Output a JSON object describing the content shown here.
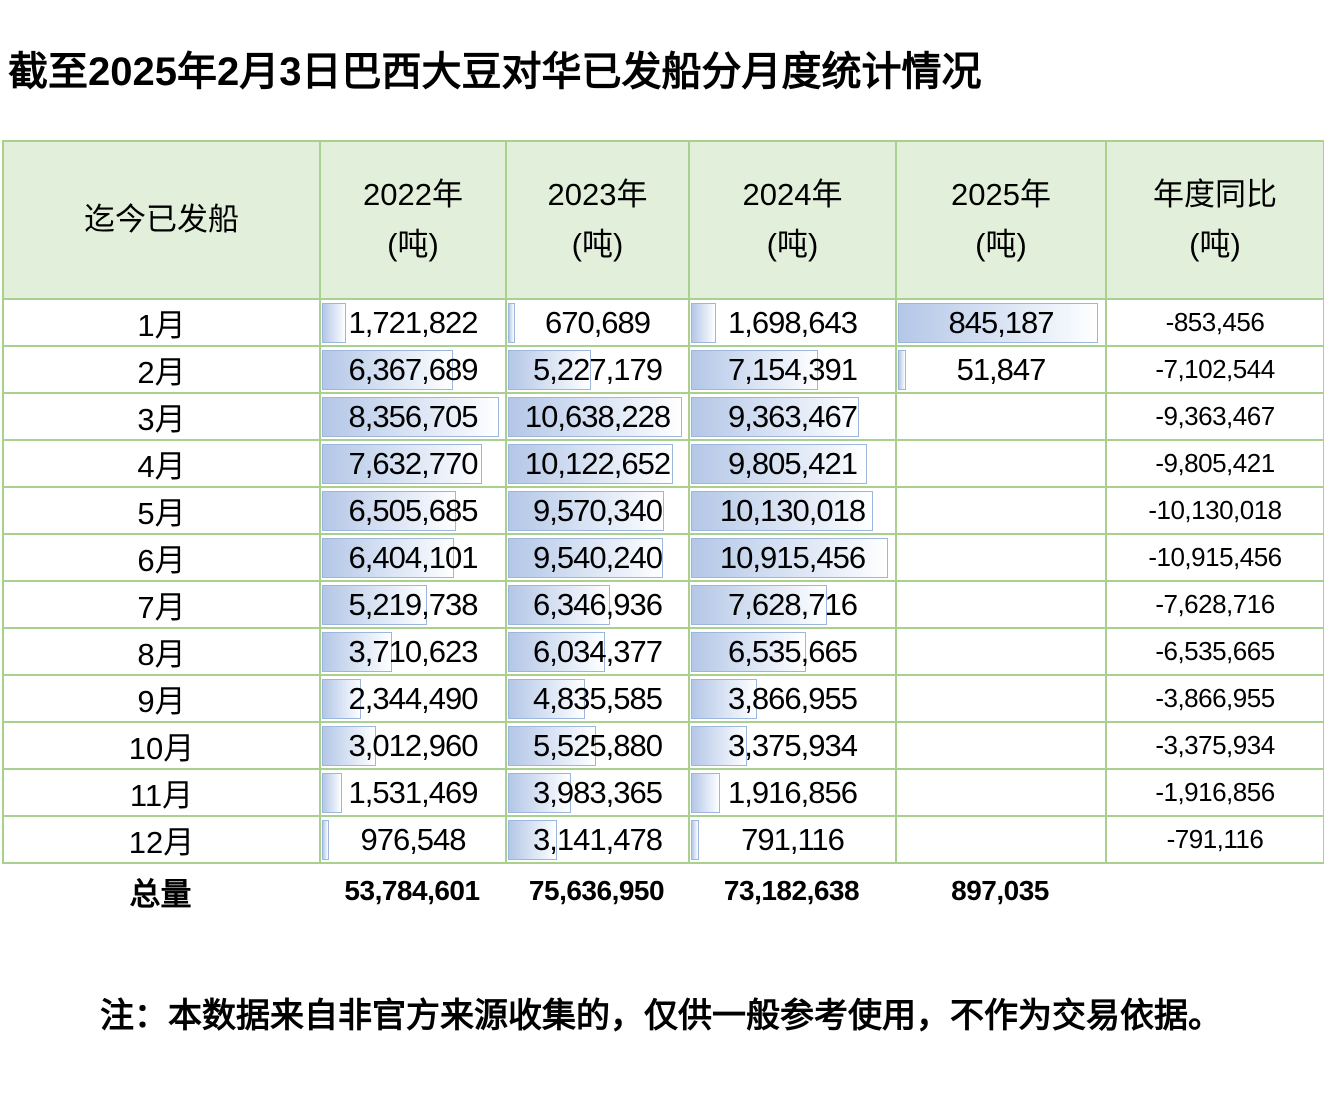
{
  "title": "截至2025年2月3日巴西大豆对华已发船分月度统计情况",
  "note": "注：本数据来自非官方来源收集的，仅供一般参考使用，不作为交易依据。",
  "colors": {
    "header_bg": "#e2efda",
    "grid_border": "#a9d08e",
    "bar_fill": "#b4c7e7",
    "bar_border": "#9db6dd",
    "text": "#000000"
  },
  "chart_data": {
    "type": "table",
    "title": "截至2025年2月3日巴西大豆对华已发船分月度统计情况",
    "headers": {
      "row_header": "迄今已发船",
      "year_cols": [
        {
          "label": "2022年",
          "unit": "(吨)"
        },
        {
          "label": "2023年",
          "unit": "(吨)"
        },
        {
          "label": "2024年",
          "unit": "(吨)"
        },
        {
          "label": "2025年",
          "unit": "(吨)"
        },
        {
          "label": "年度同比",
          "unit": "(吨)"
        }
      ]
    },
    "databar_columns": [
      "2022年",
      "2023年",
      "2024年",
      "2025年"
    ],
    "rows": [
      {
        "month": "1月",
        "values": [
          1721822,
          670689,
          1698643,
          845187
        ],
        "yoy": -853456
      },
      {
        "month": "2月",
        "values": [
          6367689,
          5227179,
          7154391,
          51847
        ],
        "yoy": -7102544
      },
      {
        "month": "3月",
        "values": [
          8356705,
          10638228,
          9363467,
          null
        ],
        "yoy": -9363467
      },
      {
        "month": "4月",
        "values": [
          7632770,
          10122652,
          9805421,
          null
        ],
        "yoy": -9805421
      },
      {
        "month": "5月",
        "values": [
          6505685,
          9570340,
          10130018,
          null
        ],
        "yoy": -10130018
      },
      {
        "month": "6月",
        "values": [
          6404101,
          9540240,
          10915456,
          null
        ],
        "yoy": -10915456
      },
      {
        "month": "7月",
        "values": [
          5219738,
          6346936,
          7628716,
          null
        ],
        "yoy": -7628716
      },
      {
        "month": "8月",
        "values": [
          3710623,
          6034377,
          6535665,
          null
        ],
        "yoy": -6535665
      },
      {
        "month": "9月",
        "values": [
          2344490,
          4835585,
          3866955,
          null
        ],
        "yoy": -3866955
      },
      {
        "month": "10月",
        "values": [
          3012960,
          5525880,
          3375934,
          null
        ],
        "yoy": -3375934
      },
      {
        "month": "11月",
        "values": [
          1531469,
          3983365,
          1916856,
          null
        ],
        "yoy": -1916856
      },
      {
        "month": "12月",
        "values": [
          976548,
          3141478,
          791116,
          null
        ],
        "yoy": -791116
      }
    ],
    "totals": {
      "label": "总量",
      "y2022": 53784601,
      "y2023": 75636950,
      "y2024": 73182638,
      "y2025": 897035,
      "yoy": null
    }
  }
}
